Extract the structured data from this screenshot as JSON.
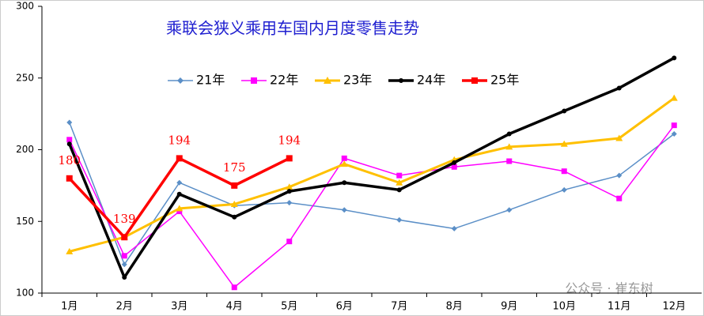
{
  "chart_data": {
    "type": "line",
    "title": "乘联会狭义乘用车国内月度零售走势",
    "categories": [
      "1月",
      "2月",
      "3月",
      "4月",
      "5月",
      "6月",
      "7月",
      "8月",
      "9月",
      "10月",
      "11月",
      "12月"
    ],
    "ylim": [
      100,
      300
    ],
    "yticks": [
      100,
      150,
      200,
      250,
      300
    ],
    "grid": false,
    "legend": "top",
    "annotation": "公众号 · 崔东树",
    "series": [
      {
        "name": "21年",
        "color": "#5b8fc7",
        "marker": "diamond",
        "width": 1.5,
        "values": [
          219,
          120,
          177,
          161,
          163,
          158,
          151,
          145,
          158,
          172,
          182,
          211
        ]
      },
      {
        "name": "22年",
        "color": "#ff00ff",
        "marker": "square",
        "width": 1.5,
        "values": [
          207,
          126,
          157,
          104,
          136,
          194,
          182,
          188,
          192,
          185,
          166,
          217
        ]
      },
      {
        "name": "23年",
        "color": "#ffc000",
        "marker": "triangle",
        "width": 3,
        "values": [
          129,
          139,
          159,
          162,
          174,
          190,
          177,
          193,
          202,
          204,
          208,
          236
        ]
      },
      {
        "name": "24年",
        "color": "#000000",
        "marker": "circle",
        "width": 3.5,
        "values": [
          204,
          111,
          169,
          153,
          171,
          177,
          172,
          191,
          211,
          227,
          243,
          264
        ]
      },
      {
        "name": "25年",
        "color": "#ff0000",
        "marker": "square",
        "width": 3.5,
        "data_labels": true,
        "values": [
          180,
          139,
          194,
          175,
          194,
          null,
          null,
          null,
          null,
          null,
          null,
          null
        ]
      }
    ]
  }
}
